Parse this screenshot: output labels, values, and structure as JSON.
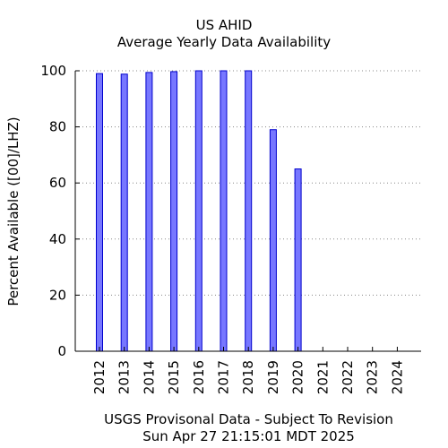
{
  "chart_data": {
    "type": "bar",
    "title": "US AHID",
    "subtitle": "Average Yearly Data Availability",
    "ylabel": "Percent Available ([00]/LHZ)",
    "xlabel": "USGS Provisonal Data - Subject To Revision",
    "timestamp": "Sun Apr 27 21:15:01 MDT 2025",
    "categories": [
      "2012",
      "2013",
      "2014",
      "2015",
      "2016",
      "2017",
      "2018",
      "2019",
      "2020",
      "2021",
      "2022",
      "2023",
      "2024"
    ],
    "values": [
      99,
      98.8,
      99.4,
      99.7,
      100,
      100,
      100,
      79,
      65,
      0,
      0,
      0,
      0
    ],
    "ylim": [
      0,
      100
    ],
    "yticks": [
      0,
      20,
      40,
      60,
      80,
      100
    ],
    "grid": true,
    "bar_color": "#7777ff",
    "bar_edge_color": "#0000cc"
  }
}
